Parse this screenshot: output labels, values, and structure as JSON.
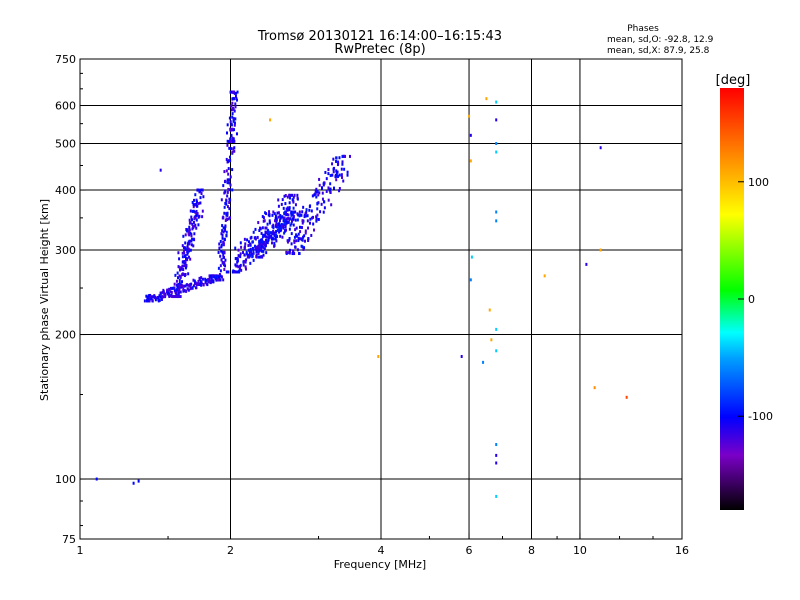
{
  "header": {
    "title_line1": "Tromsø 20130121 16:14:00–16:15:43",
    "title_line2": "RwPretec (8p)",
    "stats_title": "Phases",
    "stats_o": "mean, sd,O: -92.8, 12.9",
    "stats_x": "mean, sd,X:  87.9, 25.8"
  },
  "colorbar": {
    "unit": "[deg]",
    "ticks": [
      {
        "value": 100,
        "label": "100"
      },
      {
        "value": 0,
        "label": "0"
      },
      {
        "value": -100,
        "label": "-100"
      }
    ],
    "range": [
      -180,
      180
    ]
  },
  "chart_data": {
    "type": "scatter",
    "title": "Tromsø 20130121 16:14:00–16:15:43",
    "subtitle": "RwPretec (8p)",
    "xlabel": "Frequency [MHz]",
    "ylabel": "Stationary phase Virtual Height [km]",
    "xscale": "log",
    "yscale": "log",
    "xlim": [
      1,
      16
    ],
    "ylim": [
      75,
      750
    ],
    "x_ticks": [
      {
        "value": 1,
        "label": "1"
      },
      {
        "value": 2,
        "label": "2"
      },
      {
        "value": 4,
        "label": "4"
      },
      {
        "value": 6,
        "label": "6"
      },
      {
        "value": 8,
        "label": "8"
      },
      {
        "value": 10,
        "label": "10"
      },
      {
        "value": 16,
        "label": "16"
      }
    ],
    "y_ticks": [
      {
        "value": 75,
        "label": "75"
      },
      {
        "value": 100,
        "label": "100"
      },
      {
        "value": 200,
        "label": "200"
      },
      {
        "value": 300,
        "label": "300"
      },
      {
        "value": 400,
        "label": "400"
      },
      {
        "value": 500,
        "label": "500"
      },
      {
        "value": 600,
        "label": "600"
      },
      {
        "value": 750,
        "label": "750"
      }
    ],
    "x_grid": [
      2,
      4,
      6,
      8,
      10
    ],
    "y_grid": [
      100,
      200,
      300,
      400,
      500,
      600
    ],
    "trace_groups": [
      {
        "x": [
          1.35,
          1.9
        ],
        "y": [
          235,
          265
        ],
        "phase": -110,
        "jitter": 0.02
      },
      {
        "x": [
          1.9,
          2.05
        ],
        "y": [
          260,
          640
        ],
        "phase": -110,
        "jitter": 0.025
      },
      {
        "x": [
          2.0,
          2.7
        ],
        "y": [
          270,
          390
        ],
        "phase": -108,
        "jitter": 0.05
      },
      {
        "x": [
          2.2,
          2.7
        ],
        "y": [
          290,
          360
        ],
        "phase": -105,
        "jitter": 0.06
      },
      {
        "x": [
          2.6,
          3.4
        ],
        "y": [
          295,
          470
        ],
        "phase": -108,
        "jitter": 0.05
      },
      {
        "x": [
          1.55,
          1.75
        ],
        "y": [
          240,
          400
        ],
        "phase": -110,
        "jitter": 0.03
      }
    ],
    "points": [
      {
        "x": 1.08,
        "y": 100,
        "phase": -100
      },
      {
        "x": 1.28,
        "y": 98,
        "phase": -100
      },
      {
        "x": 1.31,
        "y": 99,
        "phase": -100
      },
      {
        "x": 1.45,
        "y": 440,
        "phase": -110
      },
      {
        "x": 2.4,
        "y": 560,
        "phase": 110
      },
      {
        "x": 3.95,
        "y": 180,
        "phase": 110
      },
      {
        "x": 5.8,
        "y": 180,
        "phase": -110
      },
      {
        "x": 6.0,
        "y": 570,
        "phase": 110
      },
      {
        "x": 6.05,
        "y": 520,
        "phase": -110
      },
      {
        "x": 6.05,
        "y": 460,
        "phase": 110
      },
      {
        "x": 6.08,
        "y": 290,
        "phase": -40
      },
      {
        "x": 6.05,
        "y": 260,
        "phase": -60
      },
      {
        "x": 6.4,
        "y": 175,
        "phase": -60
      },
      {
        "x": 6.5,
        "y": 620,
        "phase": 110
      },
      {
        "x": 6.6,
        "y": 225,
        "phase": 110
      },
      {
        "x": 6.65,
        "y": 195,
        "phase": 110
      },
      {
        "x": 6.8,
        "y": 610,
        "phase": -40
      },
      {
        "x": 6.8,
        "y": 560,
        "phase": -110
      },
      {
        "x": 6.8,
        "y": 500,
        "phase": -60
      },
      {
        "x": 6.8,
        "y": 480,
        "phase": -40
      },
      {
        "x": 6.8,
        "y": 360,
        "phase": -60
      },
      {
        "x": 6.8,
        "y": 345,
        "phase": -60
      },
      {
        "x": 6.8,
        "y": 205,
        "phase": -40
      },
      {
        "x": 6.8,
        "y": 185,
        "phase": -40
      },
      {
        "x": 6.8,
        "y": 118,
        "phase": -60
      },
      {
        "x": 6.8,
        "y": 112,
        "phase": -110
      },
      {
        "x": 6.8,
        "y": 108,
        "phase": -110
      },
      {
        "x": 6.8,
        "y": 92,
        "phase": -40
      },
      {
        "x": 8.5,
        "y": 265,
        "phase": 110
      },
      {
        "x": 10.3,
        "y": 280,
        "phase": -110
      },
      {
        "x": 10.7,
        "y": 155,
        "phase": 120
      },
      {
        "x": 11.0,
        "y": 490,
        "phase": -110
      },
      {
        "x": 11.0,
        "y": 300,
        "phase": 110
      },
      {
        "x": 12.4,
        "y": 148,
        "phase": 150
      }
    ]
  }
}
